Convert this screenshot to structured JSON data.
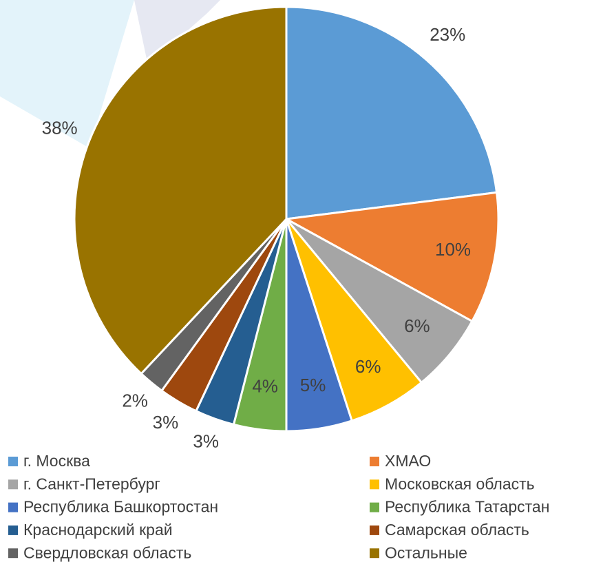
{
  "chart_data": {
    "type": "pie",
    "categories": [
      "г. Москва",
      "ХМАО",
      "г. Санкт-Петербург",
      "Московская область",
      "Республика Башкортостан",
      "Республика Татарстан",
      "Краснодарский край",
      "Самарская область",
      "Свердловская область",
      "Остальные"
    ],
    "values": [
      23,
      10,
      6,
      6,
      5,
      4,
      3,
      3,
      2,
      38
    ],
    "value_labels": [
      "23%",
      "10%",
      "6%",
      "6%",
      "5%",
      "4%",
      "3%",
      "3%",
      "2%",
      "38%"
    ],
    "colors": [
      "#5b9bd5",
      "#ed7d31",
      "#a5a5a5",
      "#ffc000",
      "#4472c4",
      "#70ad47",
      "#255e91",
      "#9e480e",
      "#636363",
      "#997300"
    ],
    "legend": "bottom"
  }
}
